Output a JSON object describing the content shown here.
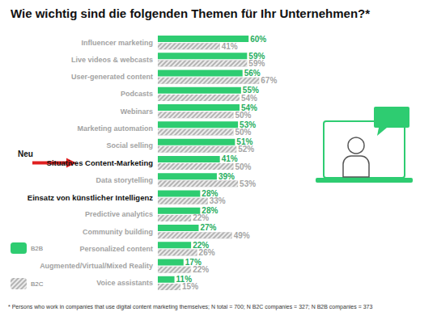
{
  "chart_data": {
    "type": "bar",
    "orientation": "horizontal",
    "title": "Wie wichtig sind die folgenden Themen für Ihr Unternehmen?*",
    "footnote": "* Persons who work in companies that use digital content marketing themselves; N total = 700; N B2C companies = 327; N B2B companies = 373",
    "annotations": [
      {
        "text": "Neu",
        "category": "Situatives Content-Marketing"
      }
    ],
    "categories": [
      "Influencer marketing",
      "Live videos & webcasts",
      "User-generated content",
      "Podcasts",
      "Webinars",
      "Marketing automation",
      "Social selling",
      "Situatives Content-Marketing",
      "Data storytelling",
      "Einsatz von künstlicher Intelligenz",
      "Predictive analytics",
      "Community building",
      "Personalized content",
      "Augmented/Virtual/Mixed Reality",
      "Voice assistants"
    ],
    "series": [
      {
        "name": "B2B",
        "color": "#2ecc71",
        "values": [
          60,
          59,
          56,
          55,
          54,
          53,
          51,
          41,
          39,
          28,
          28,
          27,
          22,
          17,
          11
        ],
        "value_labels": [
          "60%",
          "59%",
          "56%",
          "55%",
          "54%",
          "53%",
          "51%",
          "41%",
          "39%",
          "28%",
          "28%",
          "27%",
          "22%",
          "17%",
          "11%"
        ]
      },
      {
        "name": "B2C",
        "color": "#b3b3b3",
        "values": [
          41,
          59,
          67,
          54,
          50,
          50,
          52,
          50,
          53,
          33,
          22,
          49,
          26,
          22,
          15
        ],
        "value_labels": [
          "41%",
          "59%",
          "67%",
          "54%",
          "50%",
          "50%",
          "52%",
          "50%",
          "53%",
          "33%",
          "22%",
          "49%",
          "26%",
          "22%",
          "15%"
        ]
      }
    ],
    "xlim": [
      0,
      100
    ],
    "data_labels": true,
    "tick_labels": "y",
    "grid": false,
    "legend": "bottom-left"
  }
}
